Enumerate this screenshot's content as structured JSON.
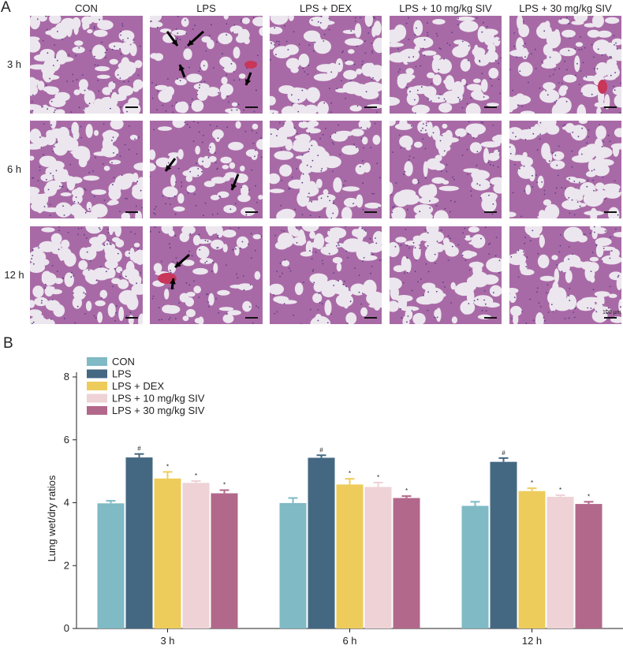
{
  "panel_a": {
    "label": "A",
    "columns": [
      "CON",
      "LPS",
      "LPS + DEX",
      "LPS + 10 mg/kg SIV",
      "LPS + 30 mg/kg SIV"
    ],
    "rows": [
      "3 h",
      "6 h",
      "12 h"
    ],
    "scale_text": "100 μm",
    "colors": {
      "tissue": "#a86aa6",
      "lumen": "#ece6ee",
      "blood": "#c8365a"
    }
  },
  "panel_b": {
    "label": "B"
  },
  "chart_data": {
    "type": "bar",
    "categories": [
      "3 h",
      "6 h",
      "12 h"
    ],
    "ylabel": "Lung wet/dry ratios",
    "xlabel": "",
    "ylim": [
      0,
      8
    ],
    "yticks": [
      0,
      2,
      4,
      6,
      8
    ],
    "legend_placement": "top-left",
    "error_bars": true,
    "series": [
      {
        "name": "CON",
        "color": "#7fbac5",
        "values": [
          3.98,
          3.99,
          3.9
        ],
        "errors": [
          0.08,
          0.16,
          0.13
        ],
        "marks": [
          "",
          "",
          ""
        ]
      },
      {
        "name": "LPS",
        "color": "#446882",
        "values": [
          5.44,
          5.43,
          5.3
        ],
        "errors": [
          0.11,
          0.08,
          0.12
        ],
        "marks": [
          "#",
          "#",
          "#"
        ]
      },
      {
        "name": "LPS + DEX",
        "color": "#edcc5c",
        "values": [
          4.77,
          4.58,
          4.37
        ],
        "errors": [
          0.21,
          0.18,
          0.09
        ],
        "marks": [
          "*",
          "*",
          "*"
        ]
      },
      {
        "name": "LPS + 10 mg/kg SIV",
        "color": "#eed2d5",
        "values": [
          4.63,
          4.5,
          4.19
        ],
        "errors": [
          0.06,
          0.14,
          0.05
        ],
        "marks": [
          "*",
          "*",
          "*"
        ]
      },
      {
        "name": "LPS + 30 mg/kg SIV",
        "color": "#b2688a",
        "values": [
          4.3,
          4.15,
          3.96
        ],
        "errors": [
          0.1,
          0.06,
          0.07
        ],
        "marks": [
          "*",
          "*",
          "*"
        ]
      }
    ]
  }
}
